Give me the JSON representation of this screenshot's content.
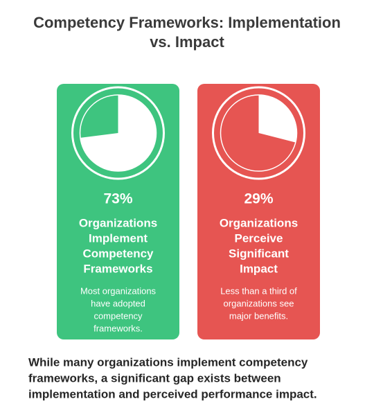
{
  "header": {
    "title": [
      "Competency Frameworks: Implementation",
      "vs. Impact"
    ]
  },
  "cards": [
    {
      "value": 73,
      "value_label": "73%",
      "color": "#3ec47f",
      "heading": [
        "Organizations",
        "Implement",
        "Competency",
        "Frameworks"
      ],
      "description": [
        "Most organizations",
        "have adopted",
        "competency",
        "frameworks."
      ]
    },
    {
      "value": 29,
      "value_label": "29%",
      "color": "#e65552",
      "heading": [
        "Organizations",
        "Perceive",
        "Significant",
        "Impact"
      ],
      "description": [
        "Less than a third of",
        "organizations see",
        "major benefits."
      ]
    }
  ],
  "footer": {
    "text": [
      "While many organizations implement competency",
      "frameworks, a significant gap exists between",
      "implementation and perceived performance impact."
    ]
  }
}
